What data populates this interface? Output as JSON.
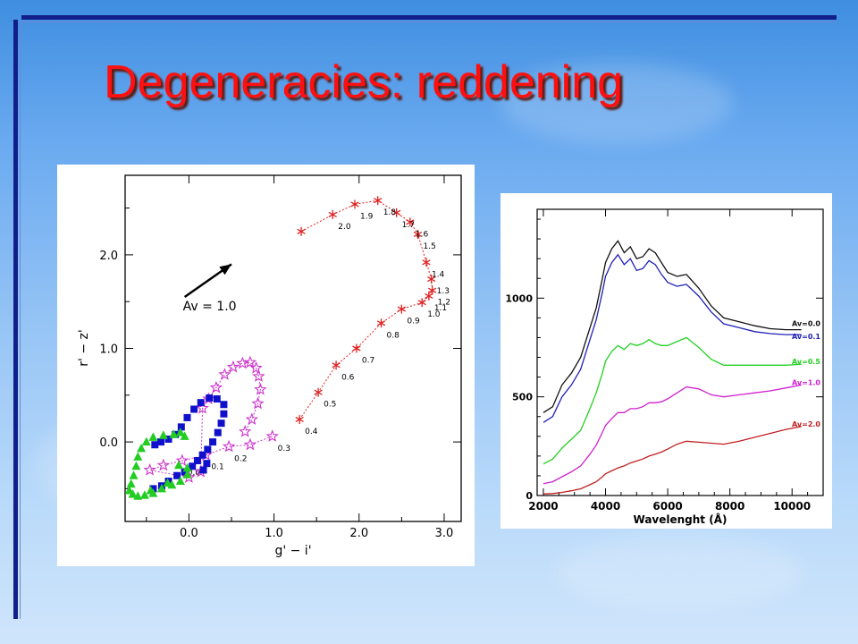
{
  "slide": {
    "title": "Degeneracies: reddening"
  },
  "colors": {
    "title": "#ff1010",
    "rule": "#101f8a"
  },
  "chart_data": [
    {
      "type": "scatter",
      "xlabel": "g' − i'",
      "ylabel": "r' − z'",
      "xlim": [
        -0.75,
        3.2
      ],
      "ylim": [
        -0.85,
        2.85
      ],
      "xticks": [
        0.0,
        1.0,
        2.0,
        3.0
      ],
      "xtick_labels": [
        "0.0",
        "1.0",
        "2.0",
        "3.0"
      ],
      "yticks": [
        0.0,
        1.0,
        2.0
      ],
      "ytick_labels": [
        "0.0",
        "1.0",
        "2.0"
      ],
      "annotation": {
        "text": "Av = 1.0",
        "arrow_from": [
          -0.05,
          1.55
        ],
        "arrow_to": [
          0.5,
          1.9
        ]
      },
      "series": [
        {
          "marker": "asterisk",
          "color": "#e02020",
          "points": [
            {
              "x": 1.3,
              "y": 0.24,
              "label": "0.4"
            },
            {
              "x": 1.52,
              "y": 0.53,
              "label": "0.5"
            },
            {
              "x": 1.73,
              "y": 0.82,
              "label": "0.6"
            },
            {
              "x": 1.97,
              "y": 1.0,
              "label": "0.7"
            },
            {
              "x": 2.26,
              "y": 1.27,
              "label": "0.8"
            },
            {
              "x": 2.5,
              "y": 1.42,
              "label": "0.9"
            },
            {
              "x": 2.74,
              "y": 1.49,
              "label": "1.0"
            },
            {
              "x": 2.82,
              "y": 1.56,
              "label": "1.1"
            },
            {
              "x": 2.86,
              "y": 1.62,
              "label": "1.2"
            },
            {
              "x": 2.85,
              "y": 1.74,
              "label": "1.3"
            },
            {
              "x": 2.79,
              "y": 1.92,
              "label": "1.4"
            },
            {
              "x": 2.69,
              "y": 2.22,
              "label": "1.5"
            },
            {
              "x": 2.6,
              "y": 2.35,
              "label": "1.6"
            },
            {
              "x": 2.44,
              "y": 2.45,
              "label": "1.7"
            },
            {
              "x": 2.22,
              "y": 2.58,
              "label": "1.8"
            },
            {
              "x": 1.95,
              "y": 2.54,
              "label": "1.9"
            },
            {
              "x": 1.69,
              "y": 2.43,
              "label": "2.0"
            },
            {
              "x": 1.32,
              "y": 2.25,
              "label": ""
            }
          ]
        },
        {
          "marker": "star",
          "color": "#cc33cc",
          "points": [
            {
              "x": 0.98,
              "y": 0.06,
              "label": "0.3"
            },
            {
              "x": 0.72,
              "y": -0.03,
              "label": ""
            },
            {
              "x": 0.47,
              "y": -0.05,
              "label": "0.2"
            },
            {
              "x": 0.2,
              "y": -0.14,
              "label": "0.1"
            },
            {
              "x": -0.08,
              "y": -0.2,
              "label": "0.0"
            },
            {
              "x": -0.3,
              "y": -0.25,
              "label": ""
            },
            {
              "x": -0.46,
              "y": -0.3,
              "label": ""
            },
            {
              "x": 0.0,
              "y": -0.38,
              "label": ""
            },
            {
              "x": 0.14,
              "y": -0.32,
              "label": ""
            },
            {
              "x": 0.16,
              "y": 0.36,
              "label": ""
            },
            {
              "x": 0.23,
              "y": 0.46,
              "label": ""
            },
            {
              "x": 0.32,
              "y": 0.58,
              "label": ""
            },
            {
              "x": 0.42,
              "y": 0.72,
              "label": ""
            },
            {
              "x": 0.52,
              "y": 0.8,
              "label": ""
            },
            {
              "x": 0.63,
              "y": 0.84,
              "label": ""
            },
            {
              "x": 0.72,
              "y": 0.85,
              "label": ""
            },
            {
              "x": 0.79,
              "y": 0.79,
              "label": ""
            },
            {
              "x": 0.82,
              "y": 0.7,
              "label": ""
            },
            {
              "x": 0.84,
              "y": 0.56,
              "label": ""
            },
            {
              "x": 0.81,
              "y": 0.41,
              "label": ""
            },
            {
              "x": 0.74,
              "y": 0.24,
              "label": ""
            },
            {
              "x": 0.66,
              "y": 0.11,
              "label": ""
            }
          ]
        },
        {
          "marker": "square",
          "color": "#1010cc",
          "points": [
            {
              "x": -0.42,
              "y": -0.5
            },
            {
              "x": -0.32,
              "y": -0.47
            },
            {
              "x": -0.24,
              "y": -0.42
            },
            {
              "x": -0.14,
              "y": -0.36
            },
            {
              "x": -0.05,
              "y": -0.32
            },
            {
              "x": 0.04,
              "y": -0.26
            },
            {
              "x": 0.1,
              "y": -0.2
            },
            {
              "x": 0.16,
              "y": -0.14
            },
            {
              "x": 0.22,
              "y": -0.08
            },
            {
              "x": 0.28,
              "y": 0.0
            },
            {
              "x": 0.34,
              "y": 0.1
            },
            {
              "x": 0.38,
              "y": 0.2
            },
            {
              "x": 0.41,
              "y": 0.3
            },
            {
              "x": 0.41,
              "y": 0.4
            },
            {
              "x": 0.33,
              "y": 0.46
            },
            {
              "x": 0.24,
              "y": 0.47
            },
            {
              "x": 0.14,
              "y": 0.42
            },
            {
              "x": 0.06,
              "y": 0.35
            },
            {
              "x": -0.02,
              "y": 0.26
            },
            {
              "x": -0.09,
              "y": 0.16
            },
            {
              "x": -0.16,
              "y": 0.08
            },
            {
              "x": -0.24,
              "y": 0.03
            },
            {
              "x": -0.33,
              "y": 0.0
            },
            {
              "x": -0.4,
              "y": -0.03
            },
            {
              "x": 0.17,
              "y": -0.3
            },
            {
              "x": 0.21,
              "y": -0.23
            }
          ]
        },
        {
          "marker": "triangle",
          "color": "#22cc22",
          "points": [
            {
              "x": -0.7,
              "y": -0.52
            },
            {
              "x": -0.66,
              "y": -0.56
            },
            {
              "x": -0.6,
              "y": -0.58
            },
            {
              "x": -0.52,
              "y": -0.57
            },
            {
              "x": -0.42,
              "y": -0.55
            },
            {
              "x": -0.32,
              "y": -0.5
            },
            {
              "x": -0.2,
              "y": -0.46
            },
            {
              "x": -0.1,
              "y": -0.42
            },
            {
              "x": -0.02,
              "y": -0.35
            },
            {
              "x": -0.12,
              "y": -0.25
            },
            {
              "x": -0.68,
              "y": -0.45
            },
            {
              "x": -0.65,
              "y": -0.36
            },
            {
              "x": -0.62,
              "y": -0.26
            },
            {
              "x": -0.6,
              "y": -0.16
            },
            {
              "x": -0.56,
              "y": -0.07
            },
            {
              "x": -0.5,
              "y": 0.0
            },
            {
              "x": -0.42,
              "y": 0.05
            },
            {
              "x": -0.3,
              "y": 0.07
            },
            {
              "x": -0.18,
              "y": 0.08
            },
            {
              "x": -0.1,
              "y": 0.1
            },
            {
              "x": -0.05,
              "y": 0.06
            },
            {
              "x": -0.02,
              "y": -0.28
            },
            {
              "x": -0.45,
              "y": -0.52
            },
            {
              "x": -0.25,
              "y": -0.44
            }
          ]
        }
      ]
    },
    {
      "type": "line",
      "xlabel": "Wavelenght (Å)",
      "ylabel": "",
      "xlim": [
        1800,
        11000
      ],
      "ylim": [
        0,
        1450
      ],
      "xticks": [
        2000,
        4000,
        6000,
        8000,
        10000
      ],
      "xtick_labels": [
        "2000",
        "4000",
        "6000",
        "8000",
        "10000"
      ],
      "yticks": [
        0,
        500,
        1000
      ],
      "ytick_labels": [
        "0",
        "500",
        "1000"
      ],
      "series": [
        {
          "name": "Av=0.0",
          "color": "#111111",
          "x": [
            2000,
            2300,
            2600,
            2900,
            3200,
            3500,
            3700,
            3900,
            4000,
            4200,
            4400,
            4600,
            4800,
            5000,
            5200,
            5400,
            5600,
            5800,
            6000,
            6300,
            6600,
            7000,
            7400,
            7800,
            8300,
            8800,
            9300,
            9800,
            10300
          ],
          "y": [
            420,
            450,
            560,
            620,
            700,
            850,
            950,
            1100,
            1180,
            1250,
            1290,
            1230,
            1260,
            1200,
            1210,
            1250,
            1230,
            1180,
            1130,
            1110,
            1120,
            1050,
            960,
            900,
            880,
            860,
            845,
            840,
            840
          ]
        },
        {
          "name": "Av=0.1",
          "color": "#2020b8",
          "x": [
            2000,
            2300,
            2600,
            2900,
            3200,
            3500,
            3700,
            3900,
            4000,
            4200,
            4400,
            4600,
            4800,
            5000,
            5200,
            5400,
            5600,
            5800,
            6000,
            6300,
            6600,
            7000,
            7400,
            7800,
            8300,
            8800,
            9300,
            9800,
            10300
          ],
          "y": [
            370,
            400,
            500,
            560,
            640,
            790,
            890,
            1030,
            1110,
            1180,
            1220,
            1170,
            1200,
            1140,
            1150,
            1190,
            1170,
            1120,
            1080,
            1060,
            1070,
            1010,
            930,
            870,
            850,
            830,
            820,
            815,
            815
          ]
        },
        {
          "name": "Av=0.5",
          "color": "#22d022",
          "x": [
            2000,
            2300,
            2600,
            2900,
            3200,
            3500,
            3700,
            3900,
            4000,
            4200,
            4400,
            4600,
            4800,
            5000,
            5200,
            5400,
            5600,
            5800,
            6000,
            6300,
            6600,
            7000,
            7400,
            7800,
            8300,
            8800,
            9300,
            9800,
            10300
          ],
          "y": [
            160,
            185,
            240,
            285,
            330,
            440,
            520,
            620,
            680,
            730,
            760,
            740,
            770,
            760,
            770,
            790,
            770,
            760,
            760,
            780,
            800,
            750,
            690,
            660,
            660,
            660,
            660,
            660,
            665
          ]
        },
        {
          "name": "Av=1.0",
          "color": "#d020d0",
          "x": [
            2000,
            2300,
            2600,
            2900,
            3200,
            3500,
            3700,
            3900,
            4000,
            4200,
            4400,
            4600,
            4800,
            5000,
            5200,
            5400,
            5600,
            5800,
            6000,
            6300,
            6600,
            7000,
            7400,
            7800,
            8300,
            8800,
            9300,
            9800,
            10300
          ],
          "y": [
            60,
            70,
            95,
            120,
            150,
            210,
            255,
            320,
            355,
            390,
            420,
            420,
            440,
            440,
            450,
            470,
            470,
            475,
            490,
            520,
            550,
            540,
            510,
            500,
            510,
            520,
            530,
            545,
            560
          ]
        },
        {
          "name": "Av=2.0",
          "color": "#c02020",
          "x": [
            2000,
            2300,
            2600,
            2900,
            3200,
            3500,
            3700,
            3900,
            4000,
            4200,
            4400,
            4600,
            4800,
            5000,
            5200,
            5400,
            5600,
            5800,
            6000,
            6300,
            6600,
            7000,
            7400,
            7800,
            8300,
            8800,
            9300,
            9800,
            10300
          ],
          "y": [
            8,
            10,
            16,
            24,
            34,
            55,
            70,
            95,
            110,
            125,
            140,
            150,
            165,
            175,
            185,
            200,
            210,
            220,
            235,
            260,
            275,
            270,
            265,
            260,
            275,
            295,
            315,
            335,
            350
          ]
        }
      ]
    }
  ]
}
